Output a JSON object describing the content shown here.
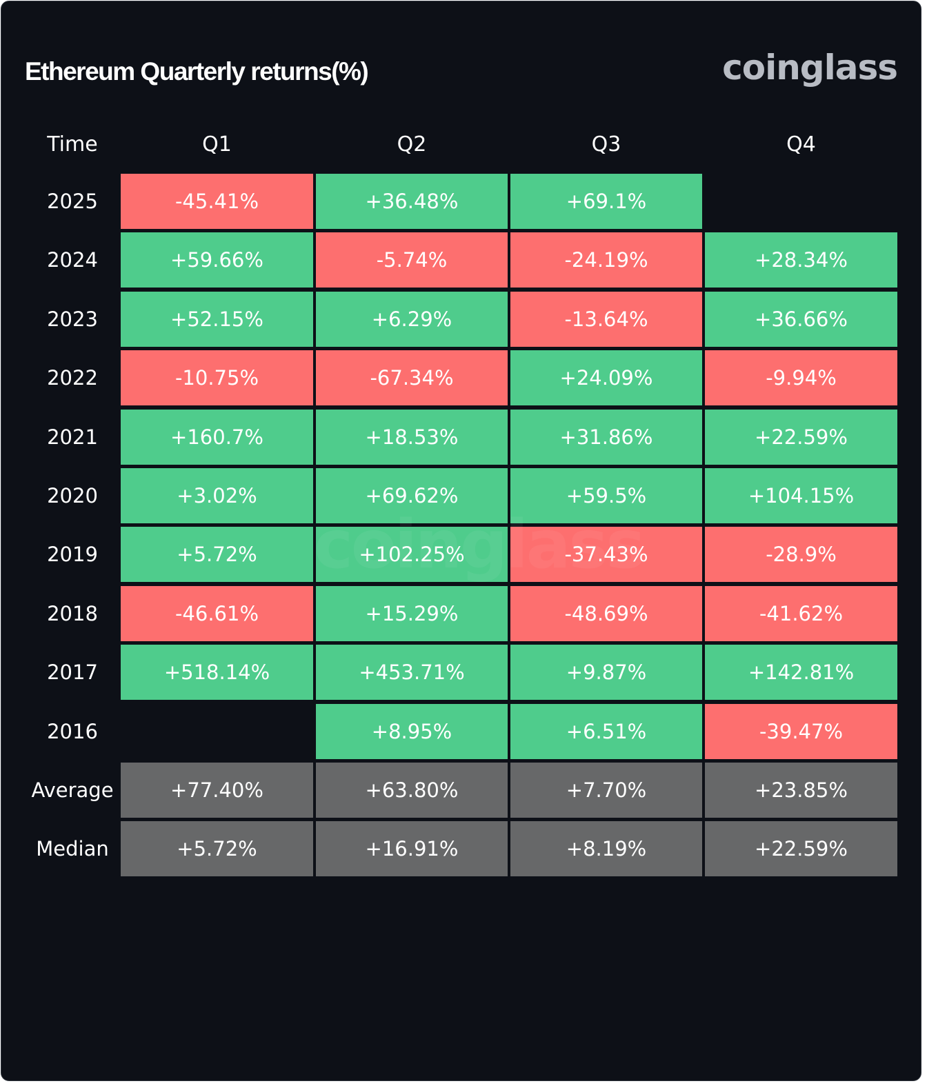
{
  "header": {
    "title": "Ethereum Quarterly returns(%)",
    "logo_text": "coinglass",
    "watermark_text": "coinglass"
  },
  "colors": {
    "background": "#0d1017",
    "positive": "#4fcc8c",
    "negative": "#fd6f6f",
    "summary": "#676869",
    "text": "#ffffff"
  },
  "chart_data": {
    "type": "table",
    "title": "Ethereum Quarterly returns(%)",
    "row_header_label": "Time",
    "columns": [
      "Q1",
      "Q2",
      "Q3",
      "Q4"
    ],
    "rows": [
      {
        "label": "2025",
        "values": [
          -45.41,
          36.48,
          69.1,
          null
        ],
        "display": [
          "-45.41%",
          "+36.48%",
          "+69.1%",
          ""
        ]
      },
      {
        "label": "2024",
        "values": [
          59.66,
          -5.74,
          -24.19,
          28.34
        ],
        "display": [
          "+59.66%",
          "-5.74%",
          "-24.19%",
          "+28.34%"
        ]
      },
      {
        "label": "2023",
        "values": [
          52.15,
          6.29,
          -13.64,
          36.66
        ],
        "display": [
          "+52.15%",
          "+6.29%",
          "-13.64%",
          "+36.66%"
        ]
      },
      {
        "label": "2022",
        "values": [
          -10.75,
          -67.34,
          24.09,
          -9.94
        ],
        "display": [
          "-10.75%",
          "-67.34%",
          "+24.09%",
          "-9.94%"
        ]
      },
      {
        "label": "2021",
        "values": [
          160.7,
          18.53,
          31.86,
          22.59
        ],
        "display": [
          "+160.7%",
          "+18.53%",
          "+31.86%",
          "+22.59%"
        ]
      },
      {
        "label": "2020",
        "values": [
          3.02,
          69.62,
          59.5,
          104.15
        ],
        "display": [
          "+3.02%",
          "+69.62%",
          "+59.5%",
          "+104.15%"
        ]
      },
      {
        "label": "2019",
        "values": [
          5.72,
          102.25,
          -37.43,
          -28.9
        ],
        "display": [
          "+5.72%",
          "+102.25%",
          "-37.43%",
          "-28.9%"
        ]
      },
      {
        "label": "2018",
        "values": [
          -46.61,
          15.29,
          -48.69,
          -41.62
        ],
        "display": [
          "-46.61%",
          "+15.29%",
          "-48.69%",
          "-41.62%"
        ]
      },
      {
        "label": "2017",
        "values": [
          518.14,
          453.71,
          9.87,
          142.81
        ],
        "display": [
          "+518.14%",
          "+453.71%",
          "+9.87%",
          "+142.81%"
        ]
      },
      {
        "label": "2016",
        "values": [
          null,
          8.95,
          6.51,
          -39.47
        ],
        "display": [
          "",
          "+8.95%",
          "+6.51%",
          "-39.47%"
        ]
      }
    ],
    "summary_rows": [
      {
        "label": "Average",
        "values": [
          77.4,
          63.8,
          7.7,
          23.85
        ],
        "display": [
          "+77.40%",
          "+63.80%",
          "+7.70%",
          "+23.85%"
        ]
      },
      {
        "label": "Median",
        "values": [
          5.72,
          16.91,
          8.19,
          22.59
        ],
        "display": [
          "+5.72%",
          "+16.91%",
          "+8.19%",
          "+22.59%"
        ]
      }
    ]
  }
}
